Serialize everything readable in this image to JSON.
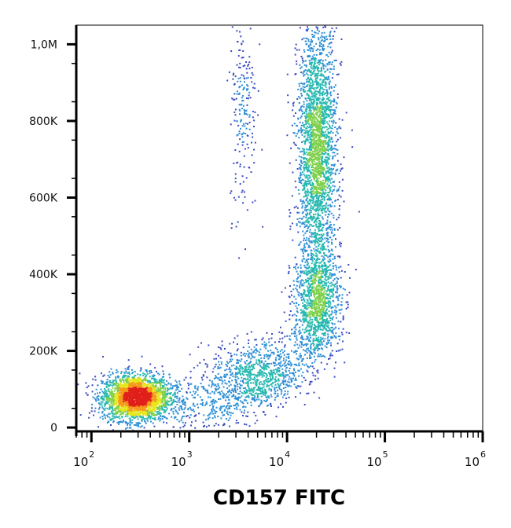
{
  "chart_data": {
    "type": "scatter",
    "title": "",
    "xlabel": "CD157 FITC",
    "ylabel": "",
    "x_scale": "log",
    "xlim": [
      70,
      1000000
    ],
    "ylim": [
      -10000,
      1050000
    ],
    "x_tick_labels": [
      {
        "base": "10",
        "exp": "2",
        "value": 100
      },
      {
        "base": "10",
        "exp": "3",
        "value": 1000
      },
      {
        "base": "10",
        "exp": "4",
        "value": 10000
      },
      {
        "base": "10",
        "exp": "5",
        "value": 100000
      },
      {
        "base": "10",
        "exp": "6",
        "value": 1000000
      }
    ],
    "y_tick_labels": [
      {
        "label": "0",
        "value": 0
      },
      {
        "label": "200K",
        "value": 200000
      },
      {
        "label": "400K",
        "value": 400000
      },
      {
        "label": "600K",
        "value": 600000
      },
      {
        "label": "800K",
        "value": 800000
      },
      {
        "label": "1,0M",
        "value": 1000000
      }
    ],
    "grid": false,
    "legend": "none",
    "density_colors": [
      "#3b4cc0",
      "#2e8fd6",
      "#27b8b0",
      "#7fd04b",
      "#e6e61c",
      "#f59a1a",
      "#e0201a"
    ],
    "populations": [
      {
        "name": "",
        "x_center": 280,
        "y_center": 80000,
        "x_spread_decades": 0.17,
        "y_spread": 30000,
        "density": "high"
      },
      {
        "name": "",
        "x_center": 20000,
        "y_center": 720000,
        "x_spread_decades": 0.1,
        "y_spread": 170000,
        "density": "high"
      },
      {
        "name": "",
        "x_center": 20000,
        "y_center": 330000,
        "x_spread_decades": 0.12,
        "y_spread": 70000,
        "density": "medium"
      },
      {
        "name": "",
        "x_center": 4500,
        "y_center": 140000,
        "x_spread_decades": 0.22,
        "y_spread": 45000,
        "density": "low"
      },
      {
        "name": "",
        "x_center": 3500,
        "y_center": 850000,
        "x_spread_decades": 0.07,
        "y_spread": 150000,
        "density": "sparse"
      }
    ]
  }
}
